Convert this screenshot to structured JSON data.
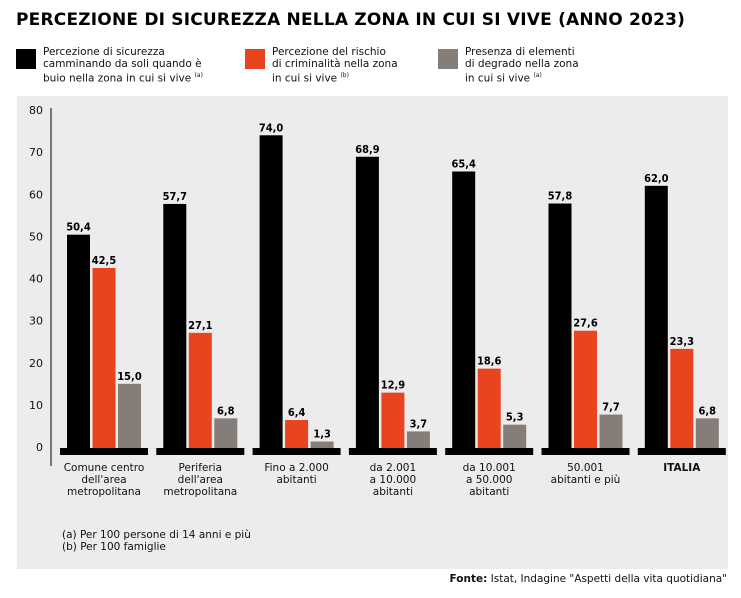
{
  "chart_data": {
    "type": "bar",
    "title": "PERCEZIONE DI SICUREZZA NELLA ZONA IN CUI SI VIVE (ANNO 2023)",
    "xlabel": "",
    "ylabel": "",
    "ylim": [
      0,
      80
    ],
    "yticks": [
      0,
      10,
      20,
      30,
      40,
      50,
      60,
      70,
      80
    ],
    "grid": false,
    "legend_position": "top",
    "categories": [
      "Comune centro\ndell'area\nmetropolitana",
      "Periferia\ndell'area\nmetropolitana",
      "Fino a 2.000\nabitanti",
      "da 2.001\na 10.000\nabitanti",
      "da 10.001\na 50.000\nabitanti",
      "50.001\nabitanti e più",
      "ITALIA"
    ],
    "bold_categories": [
      "ITALIA"
    ],
    "series": [
      {
        "name": "Percezione di sicurezza camminando da soli quando è buio nella zona in cui si vive",
        "note": "(a)",
        "color": "#000000",
        "values": [
          50.4,
          57.7,
          74.0,
          68.9,
          65.4,
          57.8,
          62.0
        ],
        "labels": [
          "50,4",
          "57,7",
          "74,0",
          "68,9",
          "65,4",
          "57,8",
          "62,0"
        ]
      },
      {
        "name": "Percezione del rischio di criminalità nella zona in cui si vive",
        "note": "(b)",
        "color": "#e8441f",
        "values": [
          42.5,
          27.1,
          6.4,
          12.9,
          18.6,
          27.6,
          23.3
        ],
        "labels": [
          "42,5",
          "27,1",
          "6,4",
          "12,9",
          "18,6",
          "27,6",
          "23,3"
        ]
      },
      {
        "name": "Presenza di elementi di degrado nella zona in cui si vive",
        "note": "(a)",
        "color": "#857d78",
        "values": [
          15.0,
          6.8,
          1.3,
          3.7,
          5.3,
          7.7,
          6.8
        ],
        "labels": [
          "15,0",
          "6,8",
          "1,3",
          "3,7",
          "5,3",
          "7,7",
          "6,8"
        ]
      }
    ]
  },
  "legend": [
    {
      "text": "Percezione di sicurezza\ncamminando da soli quando è\nbuio nella zona in cui si vive",
      "note": "(a)",
      "color": "#000000"
    },
    {
      "text": "Percezione del rischio\ndi criminalità nella zona\nin cui si vive",
      "note": "(b)",
      "color": "#e8441f"
    },
    {
      "text": "Presenza di elementi\ndi degrado nella zona\nin cui si vive",
      "note": "(a)",
      "color": "#857d78"
    }
  ],
  "notes": [
    "(a) Per 100 persone di 14 anni e più",
    "(b) Per 100 famiglie"
  ],
  "source": {
    "label": "Fonte:",
    "text": " Istat, Indagine \"Aspetti della vita quotidiana\""
  },
  "colors": {
    "panel": "#ececec",
    "axis": "#000000"
  }
}
